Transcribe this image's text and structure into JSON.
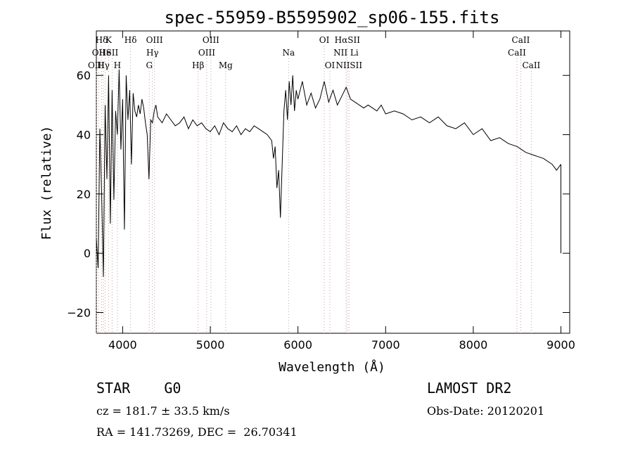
{
  "chart_data": {
    "type": "line",
    "title": "spec-55959-B5595902_sp06-155.fits",
    "xlabel": "Wavelength (Å)",
    "ylabel": "Flux (relative)",
    "xlim": [
      3700,
      9100
    ],
    "ylim": [
      -27,
      75
    ],
    "x_ticks": [
      4000,
      5000,
      6000,
      7000,
      8000,
      9000
    ],
    "y_ticks": [
      -20,
      0,
      20,
      40,
      60
    ],
    "grid": false,
    "series": [
      {
        "x": [
          3700,
          3720,
          3740,
          3760,
          3780,
          3800,
          3820,
          3840,
          3860,
          3880,
          3900,
          3920,
          3940,
          3960,
          3980,
          4000,
          4020,
          4040,
          4060,
          4080,
          4100,
          4120,
          4140,
          4160,
          4180,
          4200,
          4220,
          4240,
          4260,
          4280,
          4300,
          4320,
          4340,
          4360,
          4380,
          4400,
          4450,
          4500,
          4550,
          4600,
          4650,
          4700,
          4750,
          4800,
          4850,
          4900,
          4950,
          5000,
          5050,
          5100,
          5150,
          5200,
          5250,
          5300,
          5350,
          5400,
          5450,
          5500,
          5550,
          5600,
          5650,
          5700,
          5720,
          5740,
          5760,
          5780,
          5800,
          5820,
          5840,
          5860,
          5880,
          5900,
          5920,
          5940,
          5960,
          5980,
          6000,
          6050,
          6100,
          6150,
          6200,
          6250,
          6300,
          6350,
          6400,
          6450,
          6500,
          6550,
          6600,
          6650,
          6700,
          6750,
          6800,
          6850,
          6900,
          6950,
          7000,
          7100,
          7200,
          7300,
          7400,
          7500,
          7600,
          7700,
          7800,
          7900,
          8000,
          8100,
          8200,
          8300,
          8400,
          8500,
          8600,
          8700,
          8800,
          8900,
          8950,
          9000
        ],
        "y": [
          5,
          -5,
          42,
          20,
          -8,
          50,
          25,
          60,
          10,
          55,
          18,
          48,
          40,
          62,
          35,
          52,
          8,
          60,
          45,
          55,
          30,
          54,
          48,
          46,
          50,
          47,
          52,
          49,
          44,
          40,
          25,
          45,
          44,
          48,
          50,
          46,
          44,
          47,
          45,
          43,
          44,
          46,
          42,
          45,
          43,
          44,
          42,
          41,
          43,
          40,
          44,
          42,
          41,
          43,
          40,
          42,
          41,
          43,
          42,
          41,
          40,
          38,
          32,
          36,
          22,
          28,
          12,
          30,
          48,
          55,
          45,
          58,
          50,
          60,
          48,
          55,
          52,
          58,
          50,
          54,
          49,
          52,
          58,
          51,
          55,
          50,
          53,
          56,
          52,
          51,
          50,
          49,
          50,
          49,
          48,
          50,
          47,
          48,
          47,
          45,
          46,
          44,
          46,
          43,
          42,
          44,
          40,
          42,
          38,
          39,
          37,
          36,
          34,
          33,
          32,
          30,
          28,
          30
        ]
      }
    ],
    "emission_lines": [
      {
        "label": "Hδ",
        "x": 3760,
        "row": 0
      },
      {
        "label": "K",
        "x": 3840,
        "row": 0
      },
      {
        "label": "Hδ",
        "x": 4090,
        "row": 0
      },
      {
        "label": "OII",
        "x": 3727,
        "row": 1
      },
      {
        "label": "He",
        "x": 3800,
        "row": 1
      },
      {
        "label": "SII",
        "x": 3880,
        "row": 1
      },
      {
        "label": "OIII",
        "x": 3700,
        "row": 2
      },
      {
        "label": "Hγ",
        "x": 3780,
        "row": 2
      },
      {
        "label": "H",
        "x": 3940,
        "row": 2
      },
      {
        "label": "OIII",
        "x": 4363,
        "row": 0
      },
      {
        "label": "Hγ",
        "x": 4340,
        "row": 1
      },
      {
        "label": "G",
        "x": 4304,
        "row": 2
      },
      {
        "label": "OIII",
        "x": 5007,
        "row": 0
      },
      {
        "label": "OIII",
        "x": 4959,
        "row": 1
      },
      {
        "label": "Hβ",
        "x": 4861,
        "row": 2
      },
      {
        "label": "Mg",
        "x": 5175,
        "row": 2
      },
      {
        "label": "Na",
        "x": 5893,
        "row": 1
      },
      {
        "label": "OI",
        "x": 6300,
        "row": 0
      },
      {
        "label": "OI",
        "x": 6364,
        "row": 2
      },
      {
        "label": "HαSII",
        "x": 6563,
        "row": 0
      },
      {
        "label": "NII Li",
        "x": 6548,
        "row": 1
      },
      {
        "label": "NIISII",
        "x": 6583,
        "row": 2
      },
      {
        "label": "CaII",
        "x": 8542,
        "row": 0
      },
      {
        "label": "CaII",
        "x": 8498,
        "row": 1
      },
      {
        "label": "CaII",
        "x": 8662,
        "row": 2
      }
    ]
  },
  "info": {
    "object_class": "STAR    G0",
    "cz": "cz = 181.7 ± 33.5 km/s",
    "coords": "RA = 141.73269, DEC =  26.70341",
    "survey": "LAMOST DR2",
    "obs_date": "Obs-Date: 20120201"
  }
}
